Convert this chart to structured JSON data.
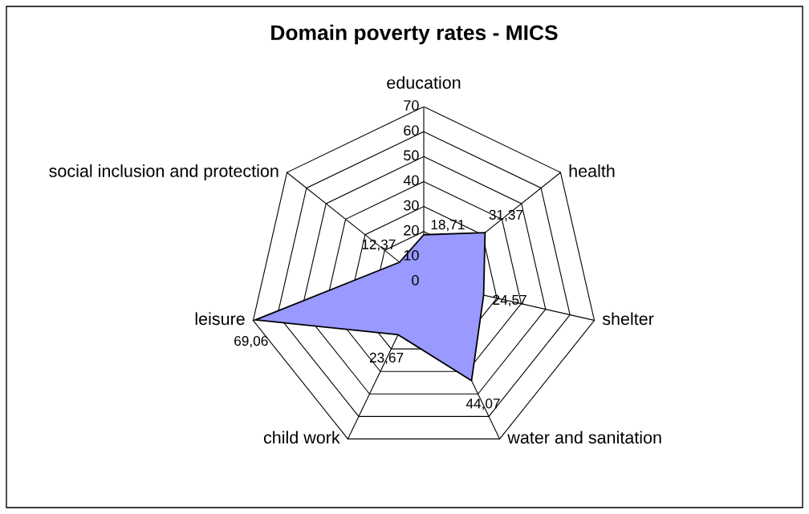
{
  "chart_data": {
    "type": "radar",
    "title": "Domain poverty rates - MICS",
    "categories": [
      "education",
      "health",
      "shelter",
      "water and sanitation",
      "child work",
      "leisure",
      "social inclusion and protection"
    ],
    "series": [
      {
        "color": "#9999ff",
        "values": [
          18.71,
          31.37,
          24.57,
          44.07,
          23.67,
          69.06,
          12.37
        ],
        "value_labels": [
          "18,71",
          "31,37",
          "24,57",
          "44,07",
          "23,67",
          "69,06",
          "12,37"
        ]
      }
    ],
    "ylim": [
      0,
      70
    ],
    "yticks": [
      0,
      10,
      20,
      30,
      40,
      50,
      60,
      70
    ],
    "grid": true
  }
}
